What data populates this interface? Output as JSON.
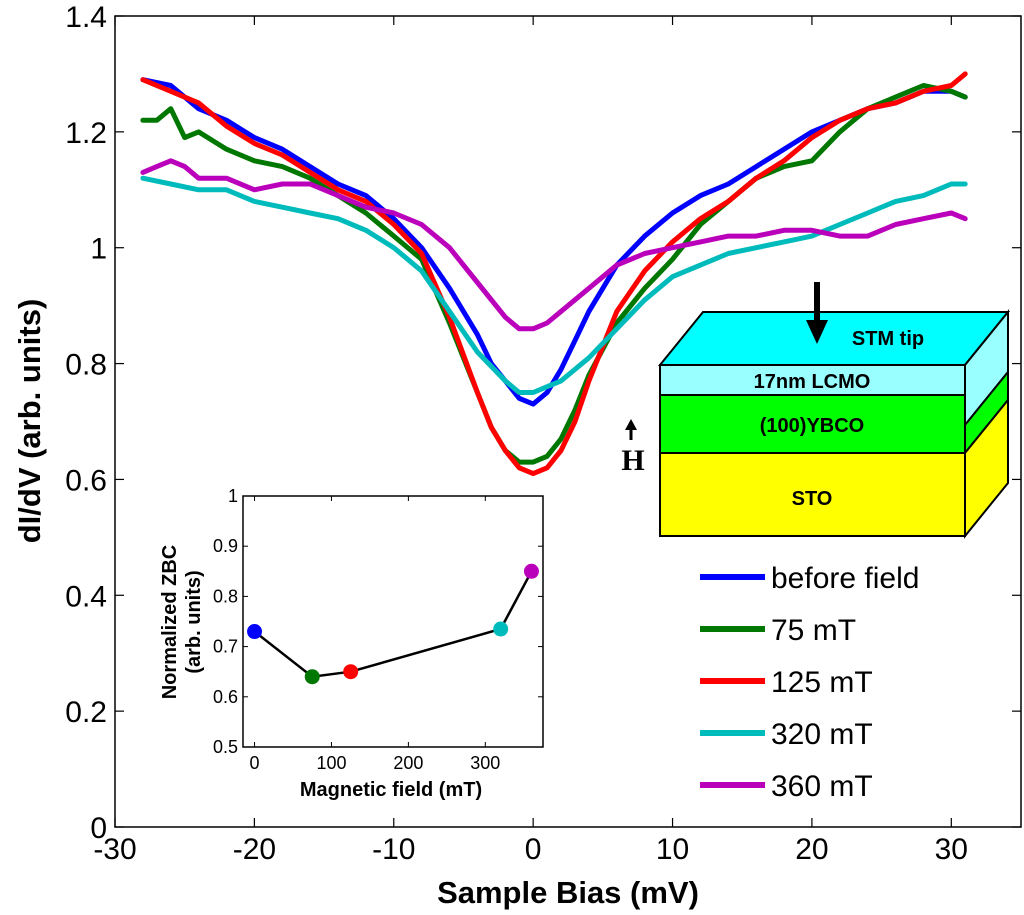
{
  "chart_data": [
    {
      "type": "line",
      "xlabel": "Sample Bias (mV)",
      "ylabel": "dI/dV (arb. units)",
      "xlim": [
        -30,
        35
      ],
      "ylim": [
        0,
        1.4
      ],
      "xticks": [
        -30,
        -20,
        -10,
        0,
        10,
        20,
        30
      ],
      "xtick_labels": [
        "-30",
        "-20",
        "-10",
        "0",
        "10",
        "20",
        "30"
      ],
      "yticks": [
        0,
        0.2,
        0.4,
        0.6,
        0.8,
        1,
        1.2,
        1.4
      ],
      "ytick_labels": [
        "0",
        "0.2",
        "0.4",
        "0.6",
        "0.8",
        "1",
        "1.2",
        "1.4"
      ],
      "legend_position": "bottom-right",
      "series": [
        {
          "name": "before field",
          "color": "#0000ff",
          "x": [
            -28,
            -26,
            -24,
            -22,
            -20,
            -18,
            -16,
            -14,
            -12,
            -10,
            -8,
            -6,
            -4,
            -3,
            -2,
            -1,
            0,
            1,
            2,
            3,
            4,
            6,
            8,
            10,
            12,
            14,
            16,
            18,
            20,
            22,
            24,
            26,
            28,
            30,
            31
          ],
          "y": [
            1.29,
            1.28,
            1.24,
            1.22,
            1.19,
            1.17,
            1.14,
            1.11,
            1.09,
            1.05,
            1.0,
            0.93,
            0.85,
            0.8,
            0.77,
            0.74,
            0.73,
            0.75,
            0.79,
            0.84,
            0.89,
            0.97,
            1.02,
            1.06,
            1.09,
            1.11,
            1.14,
            1.17,
            1.2,
            1.22,
            1.24,
            1.25,
            1.27,
            1.27,
            1.26
          ]
        },
        {
          "name": "75 mT",
          "color": "#007700",
          "x": [
            -28,
            -27,
            -26,
            -25,
            -24,
            -22,
            -20,
            -18,
            -16,
            -14,
            -12,
            -10,
            -8,
            -6,
            -4,
            -3,
            -2,
            -1,
            0,
            1,
            2,
            3,
            4,
            6,
            8,
            10,
            12,
            14,
            16,
            18,
            20,
            22,
            24,
            26,
            28,
            30,
            31
          ],
          "y": [
            1.22,
            1.22,
            1.24,
            1.19,
            1.2,
            1.17,
            1.15,
            1.14,
            1.12,
            1.09,
            1.06,
            1.02,
            0.98,
            0.87,
            0.75,
            0.69,
            0.65,
            0.63,
            0.63,
            0.64,
            0.67,
            0.72,
            0.78,
            0.87,
            0.93,
            0.98,
            1.04,
            1.08,
            1.12,
            1.14,
            1.15,
            1.2,
            1.24,
            1.26,
            1.28,
            1.27,
            1.26
          ]
        },
        {
          "name": "125 mT",
          "color": "#ff0000",
          "x": [
            -28,
            -26,
            -24,
            -22,
            -20,
            -18,
            -16,
            -14,
            -12,
            -10,
            -8,
            -6,
            -4,
            -3,
            -2,
            -1,
            0,
            1,
            2,
            3,
            4,
            6,
            8,
            10,
            12,
            14,
            16,
            18,
            20,
            22,
            24,
            26,
            28,
            30,
            31
          ],
          "y": [
            1.29,
            1.27,
            1.25,
            1.21,
            1.18,
            1.16,
            1.13,
            1.1,
            1.08,
            1.04,
            0.99,
            0.88,
            0.75,
            0.69,
            0.65,
            0.62,
            0.61,
            0.62,
            0.65,
            0.7,
            0.77,
            0.89,
            0.96,
            1.01,
            1.05,
            1.08,
            1.12,
            1.15,
            1.19,
            1.22,
            1.24,
            1.25,
            1.27,
            1.28,
            1.3
          ]
        },
        {
          "name": "320 mT",
          "color": "#00bbbb",
          "x": [
            -28,
            -26,
            -24,
            -22,
            -20,
            -18,
            -16,
            -14,
            -12,
            -10,
            -8,
            -6,
            -4,
            -2,
            -1,
            0,
            1,
            2,
            4,
            6,
            8,
            10,
            12,
            14,
            16,
            18,
            20,
            22,
            24,
            26,
            28,
            30,
            31
          ],
          "y": [
            1.12,
            1.11,
            1.1,
            1.1,
            1.08,
            1.07,
            1.06,
            1.05,
            1.03,
            1.0,
            0.96,
            0.89,
            0.82,
            0.77,
            0.75,
            0.75,
            0.76,
            0.77,
            0.81,
            0.86,
            0.91,
            0.95,
            0.97,
            0.99,
            1.0,
            1.01,
            1.02,
            1.04,
            1.06,
            1.08,
            1.09,
            1.11,
            1.11
          ]
        },
        {
          "name": "360 mT",
          "color": "#bb00bb",
          "x": [
            -28,
            -27,
            -26,
            -25,
            -24,
            -22,
            -20,
            -18,
            -16,
            -14,
            -12,
            -10,
            -8,
            -6,
            -4,
            -2,
            -1,
            0,
            1,
            2,
            4,
            6,
            8,
            10,
            12,
            14,
            16,
            18,
            20,
            22,
            24,
            26,
            28,
            30,
            31
          ],
          "y": [
            1.13,
            1.14,
            1.15,
            1.14,
            1.12,
            1.12,
            1.1,
            1.11,
            1.11,
            1.09,
            1.07,
            1.06,
            1.04,
            1.0,
            0.94,
            0.88,
            0.86,
            0.86,
            0.87,
            0.89,
            0.93,
            0.97,
            0.99,
            1.0,
            1.01,
            1.02,
            1.02,
            1.03,
            1.03,
            1.02,
            1.02,
            1.04,
            1.05,
            1.06,
            1.05
          ]
        }
      ]
    },
    {
      "type": "line",
      "xlabel": "Magnetic field (mT)",
      "ylabel": "Normalized ZBC (arb. units)",
      "ylabel_lines": [
        "Normalized ZBC",
        "(arb. units)"
      ],
      "xlim": [
        -15,
        375
      ],
      "ylim": [
        0.5,
        1
      ],
      "xticks": [
        0,
        100,
        200,
        300
      ],
      "xtick_labels": [
        "0",
        "100",
        "200",
        "300"
      ],
      "yticks": [
        0.5,
        0.6,
        0.7,
        0.8,
        0.9,
        1
      ],
      "ytick_labels": [
        "0.5",
        "0.6",
        "0.7",
        "0.8",
        "0.9",
        "1"
      ],
      "line_color": "#000000",
      "x": [
        0,
        75,
        125,
        320,
        360
      ],
      "y": [
        0.73,
        0.64,
        0.65,
        0.735,
        0.85
      ],
      "point_colors": [
        "#0000ff",
        "#007700",
        "#ff0000",
        "#00bbbb",
        "#bb00bb"
      ]
    }
  ],
  "schematic": {
    "layers": [
      {
        "label": "STM tip",
        "color": "#00ffff"
      },
      {
        "label": "17nm LCMO",
        "color": "#99ffff"
      },
      {
        "label": "(100)YBCO",
        "color": "#00ff00"
      },
      {
        "label": "STO",
        "color": "#ffff00"
      }
    ],
    "field_label": "H"
  }
}
